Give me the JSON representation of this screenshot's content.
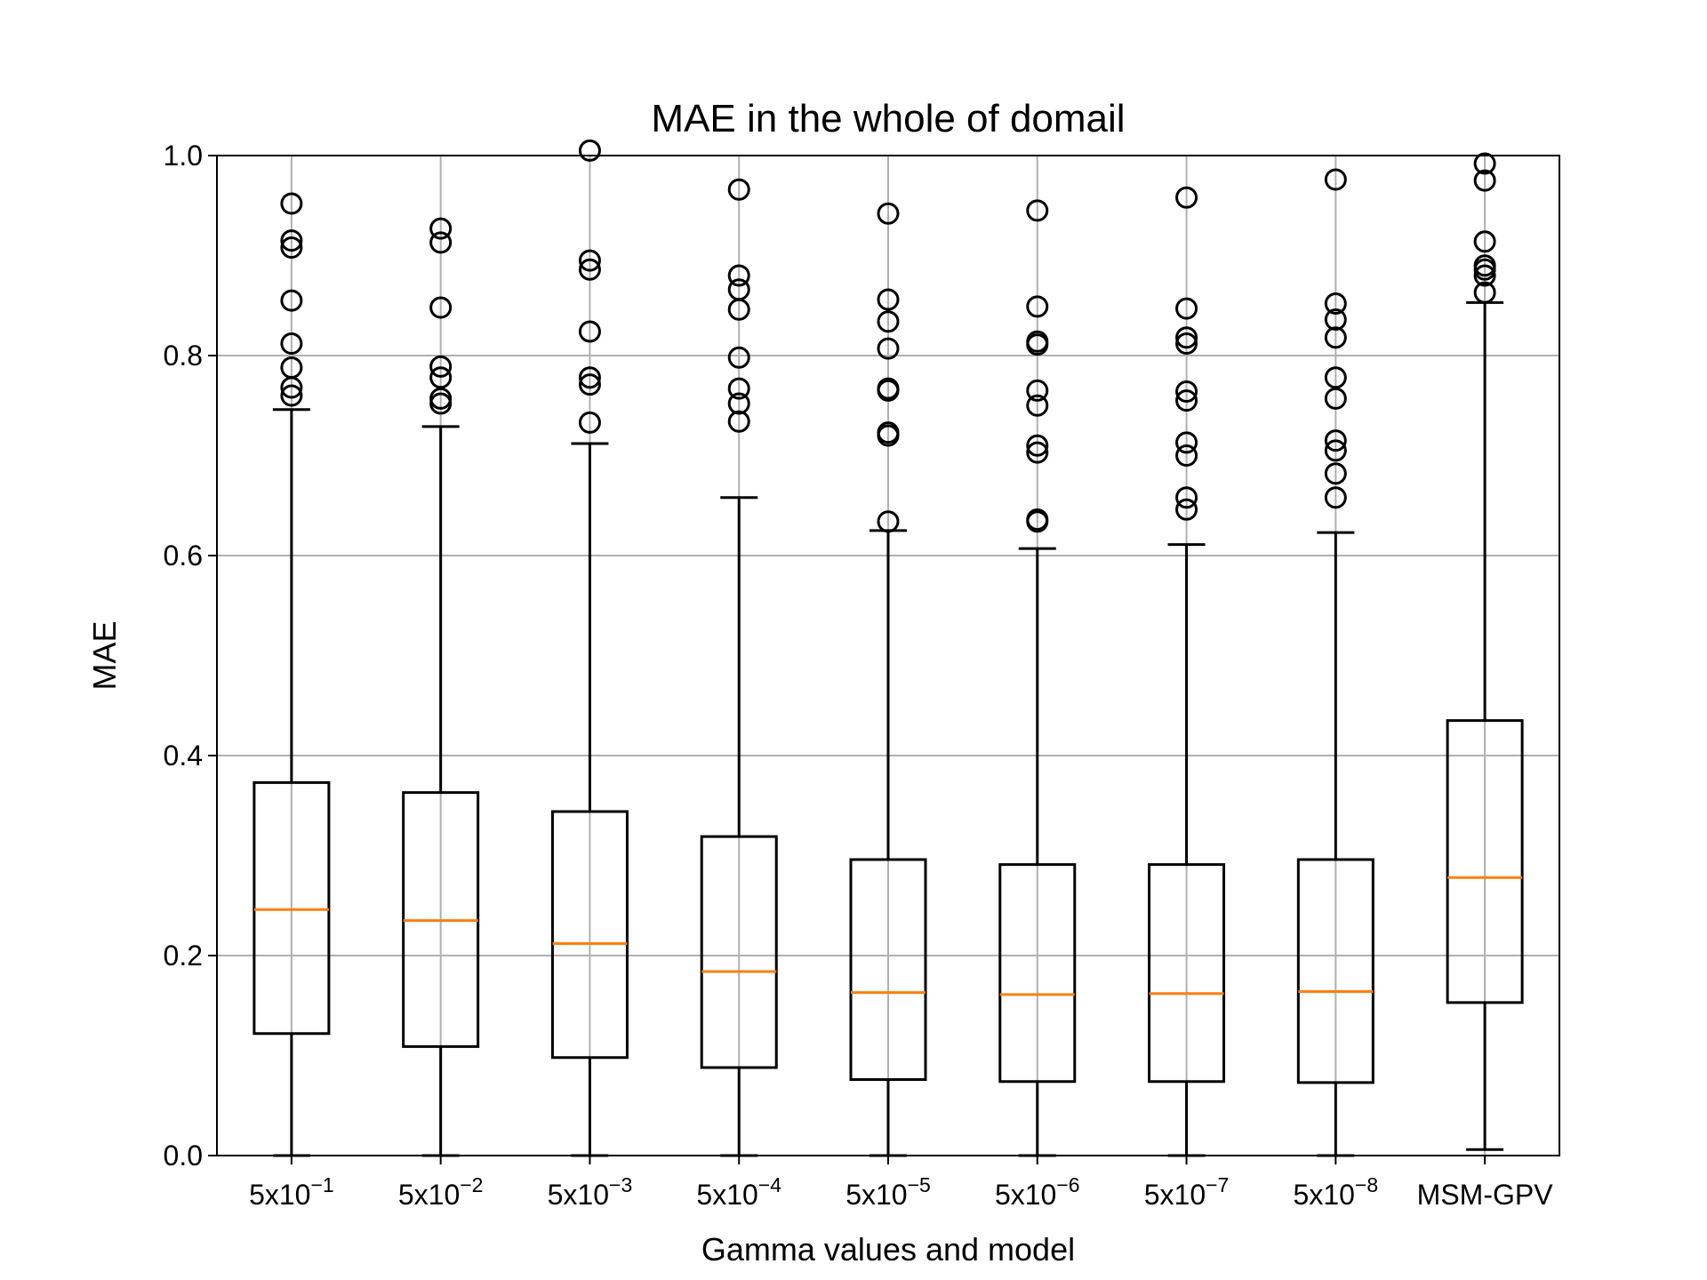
{
  "chart_data": {
    "type": "boxplot",
    "title": "MAE in the whole of domail",
    "xlabel": "Gamma values and model",
    "ylabel": "MAE",
    "ylim": [
      0.0,
      1.0
    ],
    "yticks": [
      "0.0",
      "0.2",
      "0.4",
      "0.6",
      "0.8",
      "1.0"
    ],
    "grid": true,
    "colors": {
      "box": "#000000",
      "median": "#ff7f0e",
      "grid": "#b0b0b0"
    },
    "categories": [
      {
        "base": "5x10",
        "exp": "−1"
      },
      {
        "base": "5x10",
        "exp": "−2"
      },
      {
        "base": "5x10",
        "exp": "−3"
      },
      {
        "base": "5x10",
        "exp": "−4"
      },
      {
        "base": "5x10",
        "exp": "−5"
      },
      {
        "base": "5x10",
        "exp": "−6"
      },
      {
        "base": "5x10",
        "exp": "−7"
      },
      {
        "base": "5x10",
        "exp": "−8"
      },
      {
        "base": "MSM-GPV",
        "exp": ""
      }
    ],
    "boxes": [
      {
        "whisker_low": 0.0,
        "q1": 0.122,
        "median": 0.246,
        "q3": 0.373,
        "whisker_high": 0.746,
        "outliers": [
          0.952,
          0.915,
          0.908,
          0.855,
          0.812,
          0.788,
          0.768,
          0.76
        ]
      },
      {
        "whisker_low": 0.0,
        "q1": 0.109,
        "median": 0.235,
        "q3": 0.363,
        "whisker_high": 0.729,
        "outliers": [
          0.927,
          0.913,
          0.848,
          0.789,
          0.778,
          0.757,
          0.752
        ]
      },
      {
        "whisker_low": 0.0,
        "q1": 0.098,
        "median": 0.212,
        "q3": 0.344,
        "whisker_high": 0.712,
        "outliers": [
          1.005,
          0.895,
          0.886,
          0.824,
          0.778,
          0.771,
          0.733
        ]
      },
      {
        "whisker_low": 0.0,
        "q1": 0.088,
        "median": 0.184,
        "q3": 0.319,
        "whisker_high": 0.658,
        "outliers": [
          0.966,
          0.88,
          0.866,
          0.846,
          0.798,
          0.767,
          0.752,
          0.734
        ]
      },
      {
        "whisker_low": 0.0,
        "q1": 0.076,
        "median": 0.163,
        "q3": 0.296,
        "whisker_high": 0.625,
        "outliers": [
          0.942,
          0.856,
          0.834,
          0.807,
          0.767,
          0.765,
          0.723,
          0.72,
          0.634
        ]
      },
      {
        "whisker_low": 0.0,
        "q1": 0.074,
        "median": 0.161,
        "q3": 0.291,
        "whisker_high": 0.607,
        "outliers": [
          0.945,
          0.849,
          0.814,
          0.811,
          0.765,
          0.75,
          0.71,
          0.703,
          0.636,
          0.634
        ]
      },
      {
        "whisker_low": 0.0,
        "q1": 0.074,
        "median": 0.162,
        "q3": 0.291,
        "whisker_high": 0.611,
        "outliers": [
          0.958,
          0.847,
          0.818,
          0.812,
          0.764,
          0.755,
          0.713,
          0.7,
          0.658,
          0.646
        ]
      },
      {
        "whisker_low": 0.0,
        "q1": 0.073,
        "median": 0.164,
        "q3": 0.296,
        "whisker_high": 0.623,
        "outliers": [
          0.976,
          0.852,
          0.836,
          0.818,
          0.778,
          0.757,
          0.715,
          0.705,
          0.682,
          0.658
        ]
      },
      {
        "whisker_low": 0.006,
        "q1": 0.153,
        "median": 0.278,
        "q3": 0.435,
        "whisker_high": 0.853,
        "outliers": [
          0.992,
          0.975,
          0.914,
          0.89,
          0.886,
          0.88,
          0.863
        ]
      }
    ]
  }
}
